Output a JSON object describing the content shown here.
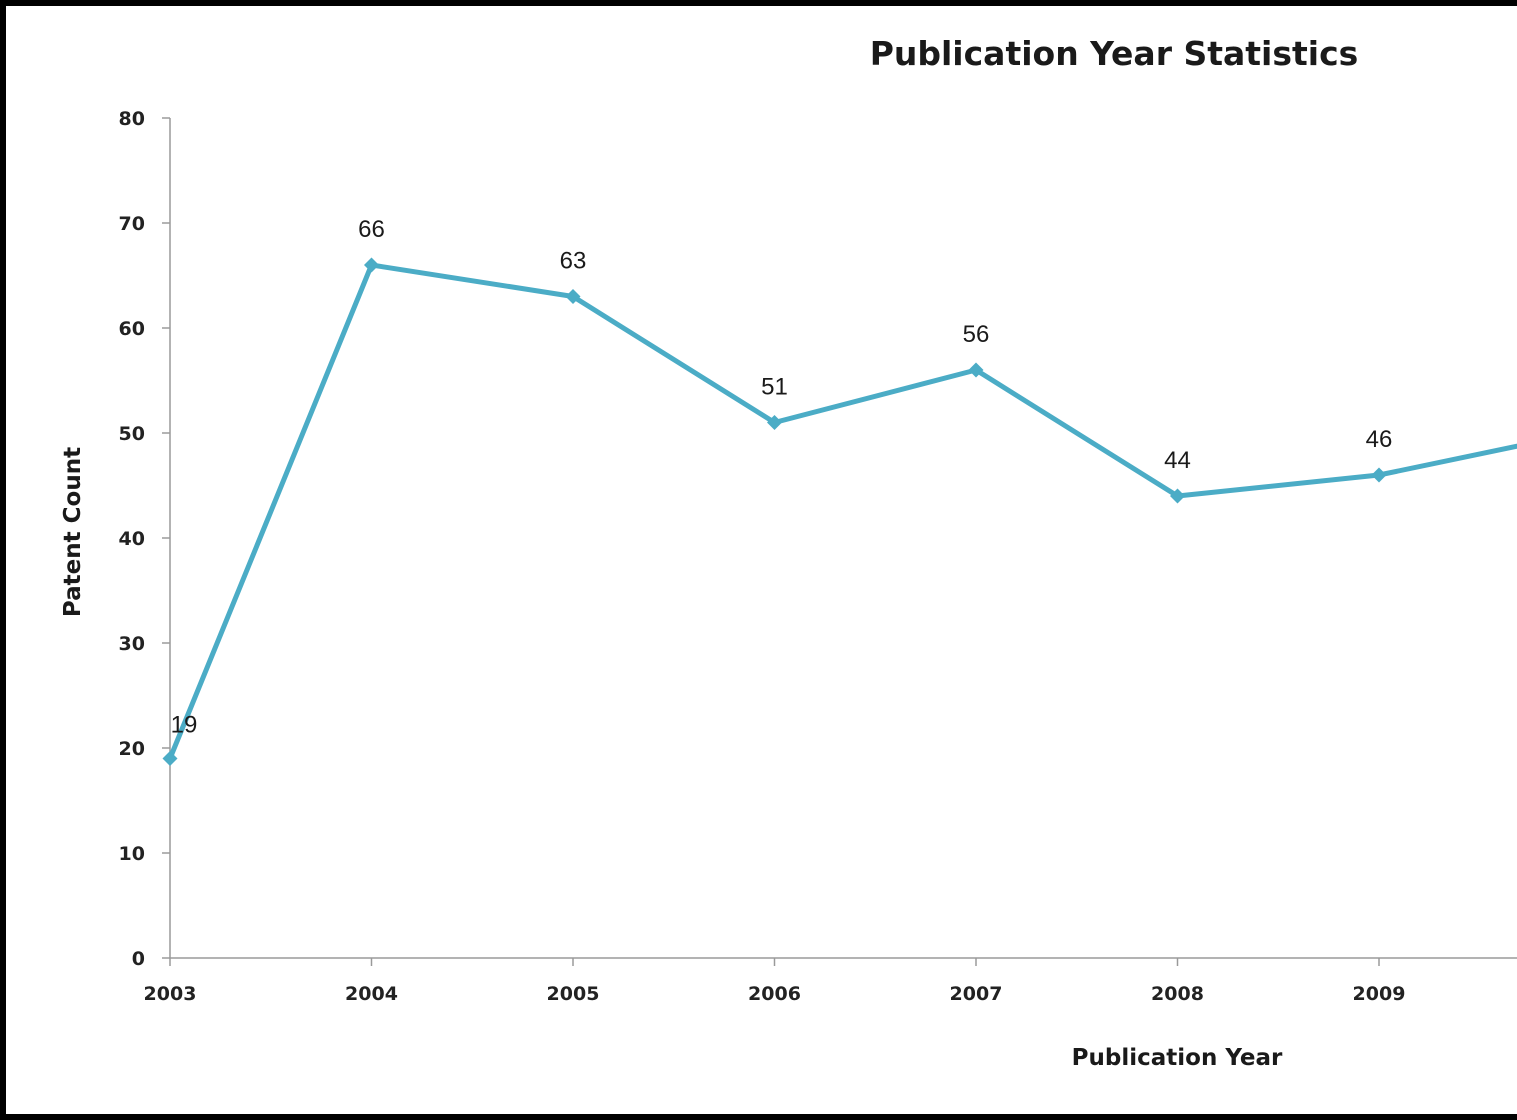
{
  "chart_data": {
    "type": "line",
    "title": "Publication Year Statistics",
    "xlabel": "Publication Year",
    "ylabel": "Patent Count",
    "categories": [
      "2003",
      "2004",
      "2005",
      "2006",
      "2007",
      "2008",
      "2009"
    ],
    "series": [
      {
        "values": [
          19,
          66,
          63,
          51,
          56,
          44,
          46
        ]
      }
    ],
    "data_labels": [
      "19",
      "66",
      "63",
      "51",
      "56",
      "44",
      "46"
    ],
    "trailing_value": 50,
    "ylim": [
      0,
      80
    ],
    "yticks": [
      0,
      10,
      20,
      30,
      40,
      50,
      60,
      70,
      80
    ],
    "grid": false,
    "legend": "none",
    "line_color": "#4BACC6"
  }
}
